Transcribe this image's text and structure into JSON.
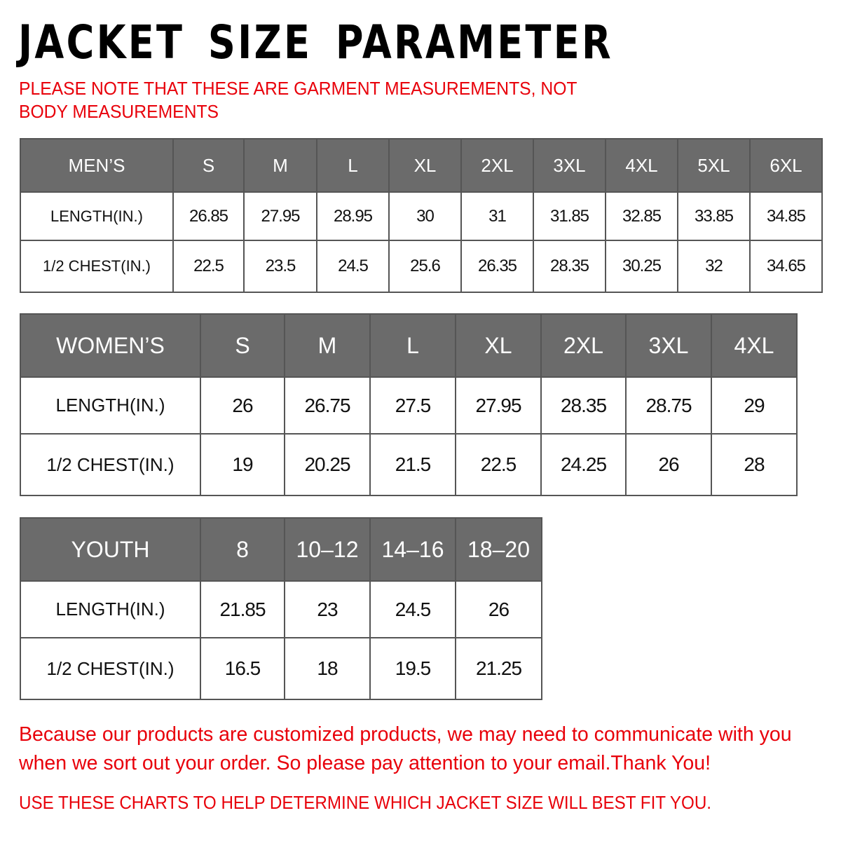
{
  "title": "JACKET SIZE PARAMETER",
  "note": "PLEASE NOTE THAT THESE ARE GARMENT MEASUREMENTS, NOT BODY MEASUREMENTS",
  "colors": {
    "header_bg": "#6b6b6b",
    "accent_red": "#e8000a"
  },
  "mens": {
    "header": [
      "MEN’S",
      "S",
      "M",
      "L",
      "XL",
      "2XL",
      "3XL",
      "4XL",
      "5XL",
      "6XL"
    ],
    "rows": [
      [
        "LENGTH(IN.)",
        "26.85",
        "27.95",
        "28.95",
        "30",
        "31",
        "31.85",
        "32.85",
        "33.85",
        "34.85"
      ],
      [
        "1/2 CHEST(IN.)",
        "22.5",
        "23.5",
        "24.5",
        "25.6",
        "26.35",
        "28.35",
        "30.25",
        "32",
        "34.65"
      ]
    ]
  },
  "womens": {
    "header": [
      "WOMEN’S",
      "S",
      "M",
      "L",
      "XL",
      "2XL",
      "3XL",
      "4XL"
    ],
    "rows": [
      [
        "LENGTH(IN.)",
        "26",
        "26.75",
        "27.5",
        "27.95",
        "28.35",
        "28.75",
        "29"
      ],
      [
        "1/2 CHEST(IN.)",
        "19",
        "20.25",
        "21.5",
        "22.5",
        "24.25",
        "26",
        "28"
      ]
    ]
  },
  "youth": {
    "header": [
      "YOUTH",
      "8",
      "10–12",
      "14–16",
      "18–20"
    ],
    "rows": [
      [
        "LENGTH(IN.)",
        "21.85",
        "23",
        "24.5",
        "26"
      ],
      [
        "1/2 CHEST(IN.)",
        "16.5",
        "18",
        "19.5",
        "21.25"
      ]
    ]
  },
  "footer": {
    "message": "Because our products are customized products, we may need to communicate with you when we sort out your order. So please pay attention to your email.Thank You!",
    "help": "USE THESE CHARTS TO HELP DETERMINE WHICH JACKET SIZE WILL BEST FIT YOU."
  }
}
